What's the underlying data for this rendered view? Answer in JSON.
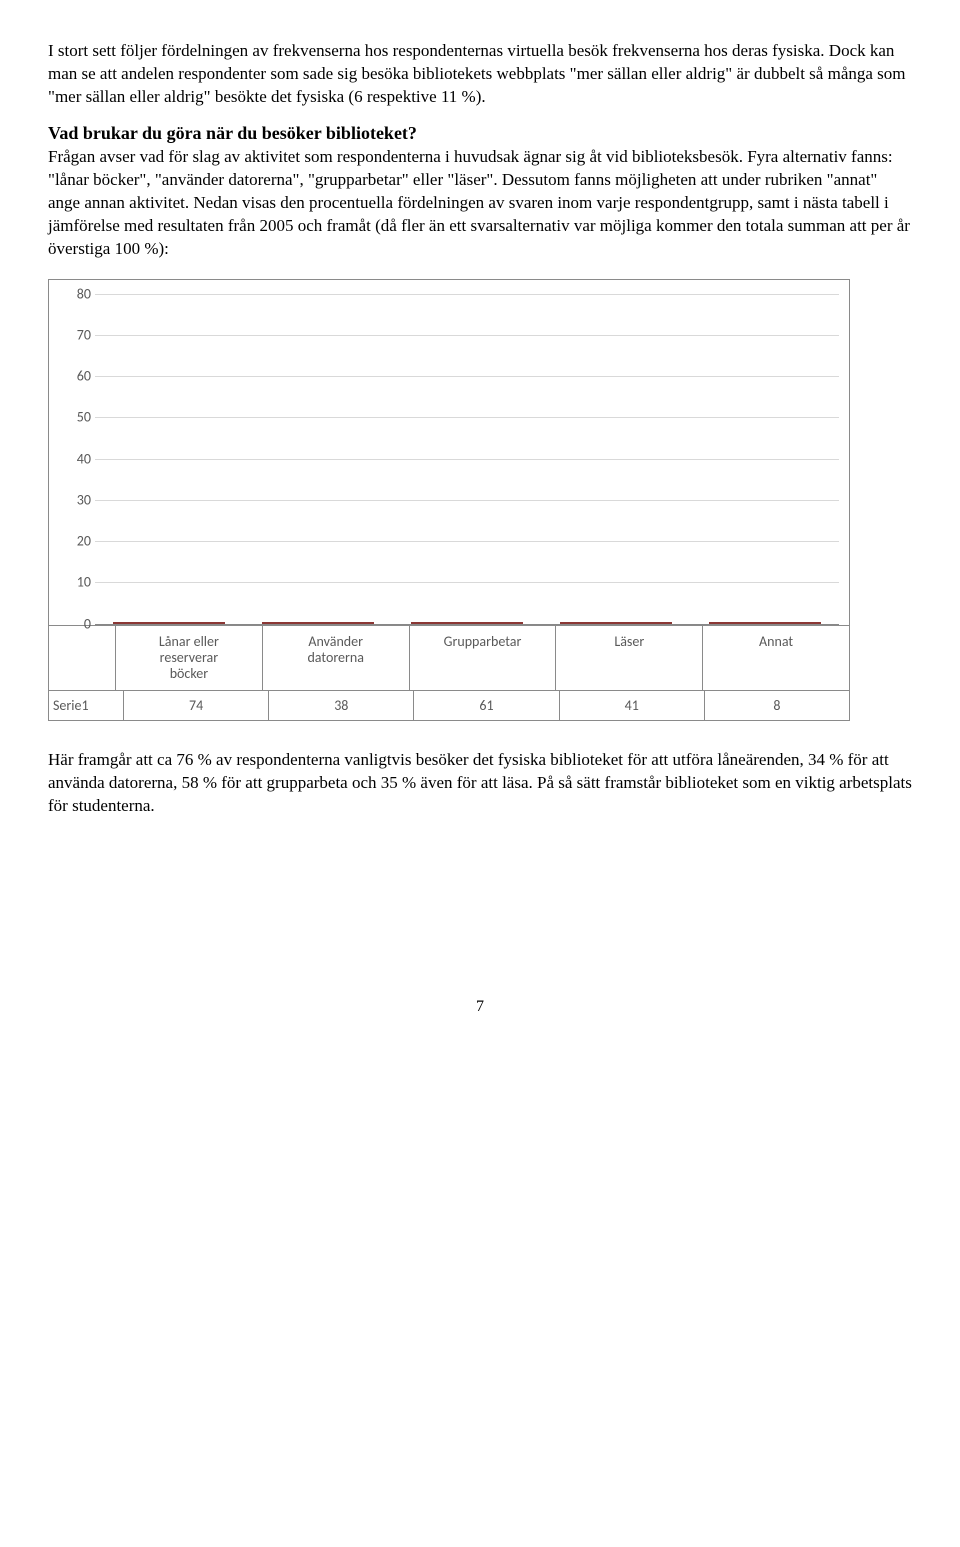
{
  "paragraphs": {
    "p1": "I stort sett följer fördelningen av frekvenserna hos respondenternas virtuella besök frekvenserna hos deras fysiska. Dock kan man se att andelen respondenter som sade sig besöka bibliotekets webbplats \"mer sällan eller aldrig\" är dubbelt så många som \"mer sällan eller aldrig\" besökte det fysiska (6 respektive 11 %).",
    "heading": "Vad brukar du göra när du besöker biblioteket?",
    "p2": "Frågan avser vad för slag av aktivitet som respondenterna i huvudsak ägnar sig åt vid biblioteksbesök. Fyra alternativ fanns: \"lånar böcker\", \"använder datorerna\", \"grupparbetar\" eller \"läser\". Dessutom fanns möjligheten att under rubriken \"annat\" ange annan aktivitet. Nedan visas den procentuella fördelningen av svaren inom varje respondentgrupp, samt i nästa tabell i jämförelse med resultaten från 2005 och framåt (då fler än ett svarsalternativ var möjliga kommer den totala summan att per år överstiga 100 %):",
    "p3": "Här framgår att ca 76 % av respondenterna vanligtvis besöker det fysiska biblioteket för att utföra låneärenden, 34 % för att använda datorerna, 58 % för att grupparbeta och 35 % även för att läsa. På så sätt framstår biblioteket som en viktig arbetsplats för studenterna."
  },
  "chart": {
    "type": "bar",
    "y_ticks": [
      0,
      10,
      20,
      30,
      40,
      50,
      60,
      70,
      80
    ],
    "y_max": 80,
    "grid_color": "#d9d9d9",
    "bar_color": "#be4b48",
    "bar_border": "#8b3735",
    "tick_color": "#595959",
    "font_family": "Calibri, Arial, sans-serif",
    "categories": [
      {
        "label_lines": [
          "Lånar eller",
          "reserverar",
          "böcker"
        ],
        "value": 74
      },
      {
        "label_lines": [
          "Använder",
          "datorerna"
        ],
        "value": 38
      },
      {
        "label_lines": [
          "Grupparbetar"
        ],
        "value": 61
      },
      {
        "label_lines": [
          "Läser"
        ],
        "value": 41
      },
      {
        "label_lines": [
          "Annat"
        ],
        "value": 8
      }
    ],
    "series_label": "Serie1"
  },
  "page_number": "7"
}
